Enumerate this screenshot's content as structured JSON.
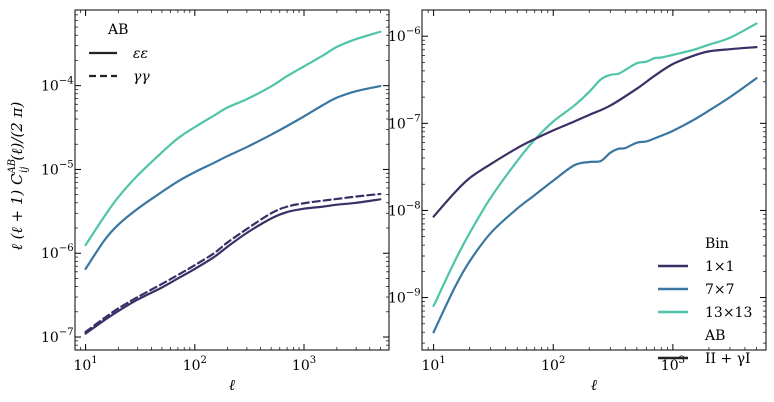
{
  "colors": {
    "bin_1x1": "#3b2f66",
    "bin_7x7": "#3a77a0",
    "bin_13x13": "#4fc4a8",
    "legend_neutral": "#222222"
  },
  "chart_data": [
    {
      "type": "line",
      "panel": "left",
      "xscale": "log",
      "yscale": "log",
      "xlabel": "ℓ",
      "ylabel": "ℓ (ℓ + 1) C_ij^AB(ℓ)/(2 π)",
      "xlim": [
        8,
        6000
      ],
      "ylim": [
        7e-08,
        0.0008
      ],
      "xticks": [
        {
          "v": 10,
          "b": "10",
          "e": "1"
        },
        {
          "v": 100,
          "b": "10",
          "e": "2"
        },
        {
          "v": 1000,
          "b": "10",
          "e": "3"
        }
      ],
      "yticks": [
        {
          "v": 1e-07,
          "b": "10",
          "e": "−7"
        },
        {
          "v": 1e-06,
          "b": "10",
          "e": "−6"
        },
        {
          "v": 1e-05,
          "b": "10",
          "e": "−5"
        },
        {
          "v": 0.0001,
          "b": "10",
          "e": "−4"
        }
      ],
      "legend": {
        "title": "AB",
        "position": "upper-left",
        "entries": [
          {
            "label": "εε",
            "style": "solid"
          },
          {
            "label": "γγ",
            "style": "dashed"
          }
        ]
      },
      "series": [
        {
          "color_key": "bin_13x13",
          "style": "solid",
          "x": [
            10,
            15,
            20,
            30,
            50,
            70,
            100,
            150,
            200,
            300,
            500,
            700,
            1000,
            1500,
            2000,
            3000,
            5000
          ],
          "y": [
            1.25e-06,
            2.8e-06,
            4.7e-06,
            8.5e-06,
            1.6e-05,
            2.35e-05,
            3.2e-05,
            4.4e-05,
            5.5e-05,
            6.9e-05,
            9.8e-05,
            0.00013,
            0.00017,
            0.00023,
            0.00029,
            0.00036,
            0.00044
          ]
        },
        {
          "color_key": "bin_7x7",
          "style": "solid",
          "x": [
            10,
            15,
            20,
            30,
            50,
            70,
            100,
            150,
            200,
            300,
            500,
            700,
            1000,
            1500,
            2000,
            3000,
            5000
          ],
          "y": [
            6.5e-07,
            1.45e-06,
            2.2e-06,
            3.4e-06,
            5.4e-06,
            7.2e-06,
            9.3e-06,
            1.2e-05,
            1.45e-05,
            1.85e-05,
            2.6e-05,
            3.3e-05,
            4.3e-05,
            5.9e-05,
            7.2e-05,
            8.6e-05,
            9.9e-05
          ]
        },
        {
          "color_key": "bin_1x1",
          "style": "solid",
          "x": [
            10,
            15,
            20,
            30,
            50,
            70,
            100,
            150,
            200,
            300,
            500,
            700,
            1000,
            1500,
            2000,
            3000,
            5000
          ],
          "y": [
            1.1e-07,
            1.6e-07,
            2.05e-07,
            2.8e-07,
            3.9e-07,
            5e-07,
            6.5e-07,
            9e-07,
            1.2e-06,
            1.75e-06,
            2.6e-06,
            3.1e-06,
            3.4e-06,
            3.6e-06,
            3.8e-06,
            4e-06,
            4.4e-06
          ]
        },
        {
          "color_key": "bin_1x1",
          "style": "dashed",
          "x": [
            10,
            15,
            20,
            30,
            50,
            70,
            100,
            150,
            200,
            300,
            500,
            700,
            1000,
            1500,
            2000,
            3000,
            5000
          ],
          "y": [
            1.15e-07,
            1.7e-07,
            2.2e-07,
            3e-07,
            4.3e-07,
            5.5e-07,
            7.2e-07,
            1e-06,
            1.35e-06,
            1.95e-06,
            3e-06,
            3.6e-06,
            3.95e-06,
            4.25e-06,
            4.45e-06,
            4.75e-06,
            5.1e-06
          ]
        }
      ]
    },
    {
      "type": "line",
      "panel": "right",
      "xscale": "log",
      "yscale": "log",
      "xlabel": "ℓ",
      "ylabel": "",
      "xlim": [
        8,
        6000
      ],
      "ylim": [
        2.5e-10,
        2e-06
      ],
      "xticks": [
        {
          "v": 10,
          "b": "10",
          "e": "1"
        },
        {
          "v": 100,
          "b": "10",
          "e": "2"
        },
        {
          "v": 1000,
          "b": "10",
          "e": "3"
        }
      ],
      "yticks": [
        {
          "v": 1e-09,
          "b": "10",
          "e": "−9"
        },
        {
          "v": 1e-08,
          "b": "10",
          "e": "−8"
        },
        {
          "v": 1e-07,
          "b": "10",
          "e": "−7"
        },
        {
          "v": 1e-06,
          "b": "10",
          "e": "−6"
        }
      ],
      "legend": {
        "position": "lower-right",
        "groups": [
          {
            "title": "Bin",
            "entries": [
              {
                "label": "1×1",
                "color_key": "bin_1x1",
                "style": "solid"
              },
              {
                "label": "7×7",
                "color_key": "bin_7x7",
                "style": "solid"
              },
              {
                "label": "13×13",
                "color_key": "bin_13x13",
                "style": "solid"
              }
            ]
          },
          {
            "title": "AB",
            "entries": [
              {
                "label": "II + γI",
                "color_key": "legend_neutral",
                "style": "solid"
              }
            ]
          }
        ]
      },
      "series": [
        {
          "color_key": "bin_13x13",
          "style": "solid",
          "x": [
            10,
            15,
            20,
            30,
            50,
            70,
            100,
            150,
            200,
            250,
            300,
            350,
            400,
            500,
            600,
            700,
            800,
            1000,
            1500,
            2000,
            3000,
            5000
          ],
          "y": [
            8e-10,
            2.6e-09,
            5.5e-09,
            1.4e-08,
            3.7e-08,
            6.5e-08,
            1.05e-07,
            1.6e-07,
            2.3e-07,
            3.2e-07,
            3.6e-07,
            3.7e-07,
            4.1e-07,
            4.9e-07,
            5.1e-07,
            5.6e-07,
            5.7e-07,
            6.1e-07,
            7e-07,
            8e-07,
            9.6e-07,
            1.4e-06
          ]
        },
        {
          "color_key": "bin_1x1",
          "style": "solid",
          "x": [
            10,
            15,
            20,
            30,
            50,
            70,
            100,
            150,
            200,
            300,
            500,
            700,
            1000,
            1500,
            2000,
            3000,
            5000
          ],
          "y": [
            8.5e-09,
            1.6e-08,
            2.35e-08,
            3.4e-08,
            5.2e-08,
            6.6e-08,
            8.3e-08,
            1.05e-07,
            1.25e-07,
            1.6e-07,
            2.5e-07,
            3.5e-07,
            4.8e-07,
            6e-07,
            6.7e-07,
            7.1e-07,
            7.5e-07
          ]
        },
        {
          "color_key": "bin_7x7",
          "style": "solid",
          "x": [
            10,
            15,
            20,
            30,
            50,
            70,
            100,
            150,
            200,
            250,
            300,
            350,
            400,
            500,
            600,
            700,
            800,
            1000,
            1500,
            2000,
            3000,
            5000
          ],
          "y": [
            4e-10,
            1.3e-09,
            2.6e-09,
            5.5e-09,
            1.05e-08,
            1.5e-08,
            2.2e-08,
            3.3e-08,
            3.6e-08,
            3.7e-08,
            4.6e-08,
            5.1e-08,
            5.2e-08,
            6e-08,
            6.2e-08,
            6.7e-08,
            7.2e-08,
            8.2e-08,
            1.1e-07,
            1.4e-07,
            2e-07,
            3.3e-07
          ]
        }
      ]
    }
  ]
}
